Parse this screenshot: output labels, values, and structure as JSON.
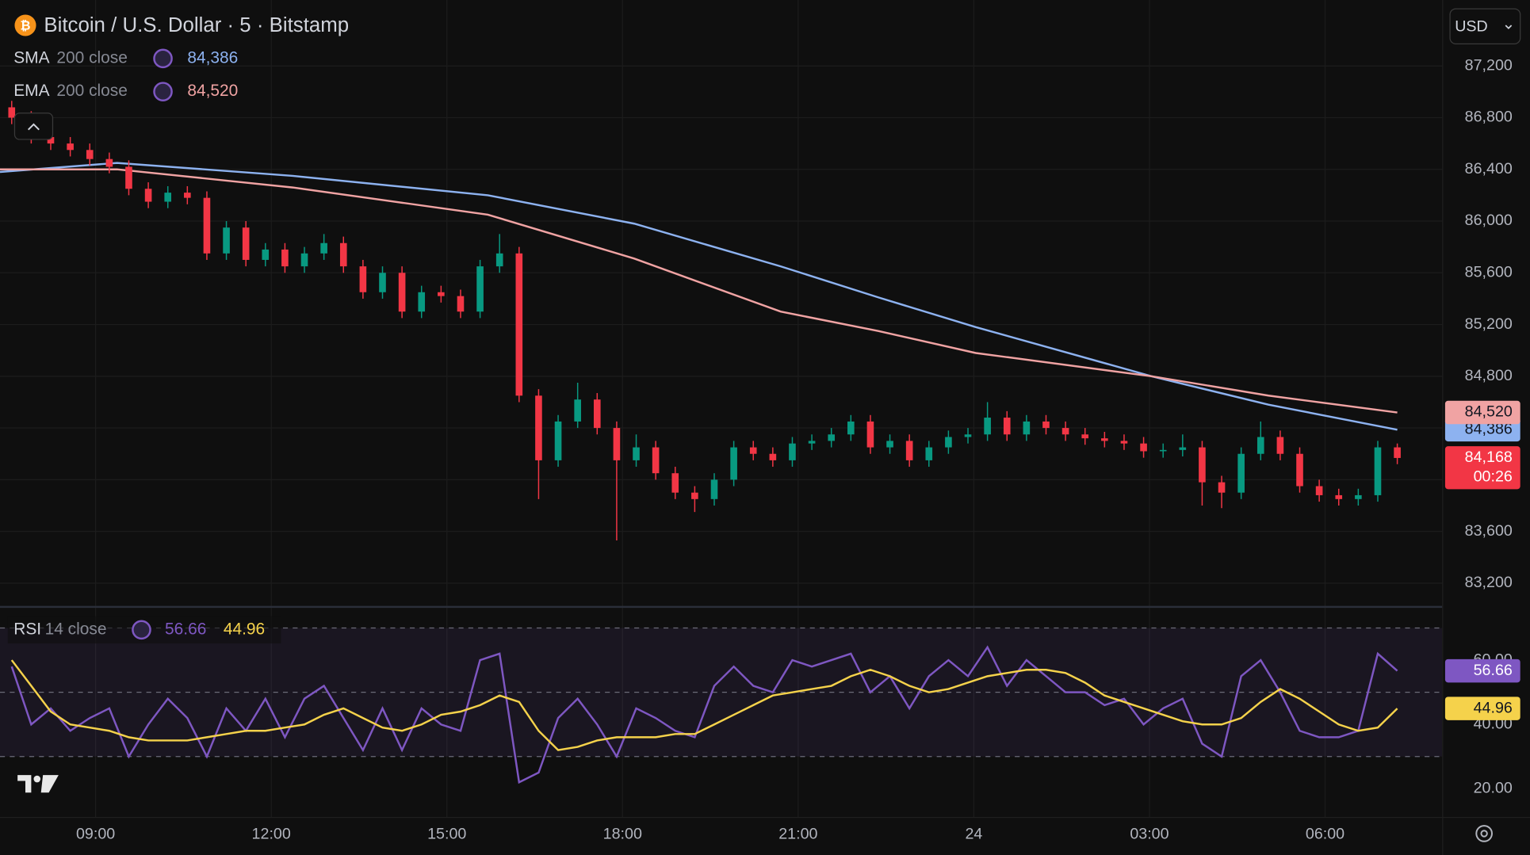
{
  "chart_data": [
    {
      "type": "candlestick",
      "title": "Bitcoin / U.S. Dollar · 5 · Bitstamp",
      "currency": "USD",
      "x": [
        454,
        474,
        494,
        514,
        534,
        554,
        574,
        594,
        614,
        634,
        654,
        674,
        694,
        714,
        734,
        754,
        774,
        794,
        814,
        834,
        854,
        874,
        894,
        914,
        934,
        954,
        974,
        994,
        1014,
        1034,
        1054,
        1074,
        1094,
        1114,
        1134,
        1154,
        1174,
        1194,
        1214,
        1234,
        1254,
        1274,
        1294,
        1314,
        1334,
        1354,
        1374,
        1394,
        1414,
        1434,
        1454,
        1474,
        1494,
        1514,
        1534,
        1554,
        1574,
        1594,
        1614,
        1634,
        1654,
        1674,
        1694,
        1714,
        1734,
        1754,
        1774,
        1794,
        1814,
        1834,
        1854,
        1874
      ],
      "open": [
        86880,
        86800,
        86650,
        86600,
        86550,
        86480,
        86420,
        86250,
        86150,
        86220,
        86180,
        85750,
        85950,
        85700,
        85780,
        85650,
        85750,
        85830,
        85650,
        85450,
        85600,
        85300,
        85450,
        85420,
        85300,
        85650,
        85750,
        84650,
        84150,
        84450,
        84620,
        84400,
        84150,
        84250,
        84050,
        83900,
        83850,
        84000,
        84250,
        84200,
        84150,
        84280,
        84300,
        84350,
        84450,
        84250,
        84300,
        84150,
        84250,
        84330,
        84350,
        84480,
        84350,
        84450,
        84400,
        84350,
        84320,
        84300,
        84280,
        84220,
        84230,
        84250,
        83980,
        83900,
        84200,
        84330,
        84200,
        83950,
        83880,
        83850,
        83880,
        84250
      ],
      "high": [
        86930,
        86850,
        86700,
        86650,
        86600,
        86530,
        86470,
        86300,
        86270,
        86270,
        86230,
        86000,
        86000,
        85830,
        85830,
        85800,
        85900,
        85880,
        85700,
        85650,
        85650,
        85500,
        85500,
        85470,
        85700,
        85900,
        85800,
        84700,
        84500,
        84750,
        84670,
        84450,
        84350,
        84300,
        84100,
        83950,
        84050,
        84300,
        84300,
        84250,
        84330,
        84350,
        84400,
        84500,
        84500,
        84350,
        84350,
        84300,
        84380,
        84400,
        84600,
        84530,
        84500,
        84500,
        84450,
        84400,
        84370,
        84350,
        84330,
        84280,
        84350,
        84300,
        84030,
        84250,
        84450,
        84380,
        84250,
        84000,
        83930,
        83930,
        84300,
        84280
      ],
      "low": [
        86750,
        86600,
        86550,
        86500,
        86430,
        86370,
        86200,
        86100,
        86100,
        86130,
        85700,
        85700,
        85650,
        85650,
        85600,
        85600,
        85700,
        85600,
        85400,
        85400,
        85250,
        85250,
        85370,
        85250,
        85250,
        85600,
        84600,
        83850,
        84100,
        84400,
        84350,
        83530,
        84100,
        84000,
        83850,
        83750,
        83800,
        83950,
        84150,
        84100,
        84100,
        84230,
        84250,
        84300,
        84200,
        84200,
        84100,
        84100,
        84200,
        84280,
        84300,
        84300,
        84300,
        84350,
        84300,
        84270,
        84250,
        84230,
        84170,
        84170,
        84180,
        83800,
        83780,
        83850,
        84150,
        84150,
        83900,
        83830,
        83800,
        83800,
        83830,
        84120
      ],
      "close": [
        86800,
        86650,
        86600,
        86550,
        86480,
        86420,
        86250,
        86150,
        86220,
        86180,
        85750,
        85950,
        85700,
        85780,
        85650,
        85750,
        85830,
        85650,
        85450,
        85600,
        85300,
        85450,
        85420,
        85300,
        85650,
        85750,
        84650,
        84150,
        84450,
        84620,
        84400,
        84150,
        84250,
        84050,
        83900,
        83850,
        84000,
        84250,
        84200,
        84150,
        84280,
        84300,
        84350,
        84450,
        84250,
        84300,
        84150,
        84250,
        84330,
        84350,
        84480,
        84350,
        84450,
        84400,
        84350,
        84320,
        84300,
        84280,
        84220,
        84230,
        84250,
        83980,
        83900,
        84200,
        84330,
        84200,
        83950,
        83880,
        83850,
        83880,
        84250,
        84168
      ],
      "up_color": "#089981",
      "down_color": "#f23645",
      "last_label": "84,168",
      "countdown": "00:26",
      "series": [
        {
          "name": "SMA",
          "params": "200 close",
          "color": "#8db2f0",
          "last_label": "84,386",
          "x": [
            442,
            562,
            742,
            942,
            1092,
            1242,
            1342,
            1442,
            1622,
            1742,
            1874
          ],
          "values": [
            86380,
            86450,
            86350,
            86200,
            85980,
            85650,
            85410,
            85180,
            84800,
            84580,
            84386
          ]
        },
        {
          "name": "EMA",
          "params": "200 close",
          "color": "#f0a3a3",
          "last_label": "84,520",
          "x": [
            442,
            562,
            742,
            942,
            1092,
            1242,
            1342,
            1442,
            1622,
            1742,
            1874
          ],
          "values": [
            86400,
            86400,
            86260,
            86050,
            85710,
            85300,
            85150,
            84980,
            84800,
            84650,
            84520
          ]
        }
      ],
      "xlim": [
        442,
        1920
      ],
      "xticks": [
        {
          "value": 540,
          "label": "09:00"
        },
        {
          "value": 720,
          "label": "12:00"
        },
        {
          "value": 900,
          "label": "15:00"
        },
        {
          "value": 1080,
          "label": "18:00"
        },
        {
          "value": 1260,
          "label": "21:00"
        },
        {
          "value": 1440,
          "label": "24"
        },
        {
          "value": 1620,
          "label": "03:00"
        },
        {
          "value": 1800,
          "label": "06:00"
        }
      ],
      "ylim": [
        83020,
        87710
      ],
      "yticks": [
        {
          "value": 83200,
          "label": "83,200"
        },
        {
          "value": 83600,
          "label": "83,600"
        },
        {
          "value": 84000,
          "label": "84,000"
        },
        {
          "value": 84400,
          "label": "84,400"
        },
        {
          "value": 84800,
          "label": "84,800"
        },
        {
          "value": 85200,
          "label": "85,200"
        },
        {
          "value": 85600,
          "label": "85,600"
        },
        {
          "value": 86000,
          "label": "86,000"
        },
        {
          "value": 86400,
          "label": "86,400"
        },
        {
          "value": 86800,
          "label": "86,800"
        },
        {
          "value": 87200,
          "label": "87,200"
        }
      ],
      "grid": true
    },
    {
      "type": "line",
      "x": [
        454,
        474,
        494,
        514,
        534,
        554,
        574,
        594,
        614,
        634,
        654,
        674,
        694,
        714,
        734,
        754,
        774,
        794,
        814,
        834,
        854,
        874,
        894,
        914,
        934,
        954,
        974,
        994,
        1014,
        1034,
        1054,
        1074,
        1094,
        1114,
        1134,
        1154,
        1174,
        1194,
        1214,
        1234,
        1254,
        1274,
        1294,
        1314,
        1334,
        1354,
        1374,
        1394,
        1414,
        1434,
        1454,
        1474,
        1494,
        1514,
        1534,
        1554,
        1574,
        1594,
        1614,
        1634,
        1654,
        1674,
        1694,
        1714,
        1734,
        1754,
        1774,
        1794,
        1814,
        1834,
        1854,
        1874
      ],
      "series": [
        {
          "name": "RSI",
          "params": "14 close",
          "color": "#7e57c2",
          "values": [
            58,
            40,
            45,
            38,
            42,
            45,
            30,
            40,
            48,
            42,
            30,
            45,
            38,
            48,
            36,
            48,
            52,
            42,
            32,
            45,
            32,
            45,
            40,
            38,
            60,
            62,
            22,
            25,
            42,
            48,
            40,
            30,
            45,
            42,
            38,
            36,
            52,
            58,
            52,
            50,
            60,
            58,
            60,
            62,
            50,
            55,
            45,
            55,
            60,
            55,
            64,
            52,
            60,
            55,
            50,
            50,
            46,
            48,
            40,
            45,
            48,
            34,
            30,
            55,
            60,
            50,
            38,
            36,
            36,
            38,
            62,
            56.66
          ]
        },
        {
          "color": "#f5d24b",
          "values": [
            60,
            52,
            44,
            40,
            39,
            38,
            36,
            35,
            35,
            35,
            36,
            37,
            38,
            38,
            39,
            40,
            43,
            45,
            42,
            39,
            38,
            40,
            43,
            44,
            46,
            49,
            47,
            38,
            32,
            33,
            35,
            36,
            36,
            36,
            37,
            37,
            40,
            43,
            46,
            49,
            50,
            51,
            52,
            55,
            57,
            55,
            52,
            50,
            51,
            53,
            55,
            56,
            57,
            57,
            56,
            53,
            49,
            47,
            45,
            43,
            41,
            40,
            40,
            42,
            47,
            51,
            48,
            44,
            40,
            38,
            39,
            44.96
          ]
        }
      ],
      "levels": [
        30,
        50,
        70
      ],
      "xlim": [
        442,
        1920
      ],
      "ylim": [
        10.6,
        75.8
      ],
      "yticks": [
        {
          "value": 20,
          "label": "20.00"
        },
        {
          "value": 40,
          "label": "40.00"
        },
        {
          "value": 60,
          "label": "60.00"
        }
      ],
      "grid": false
    }
  ]
}
